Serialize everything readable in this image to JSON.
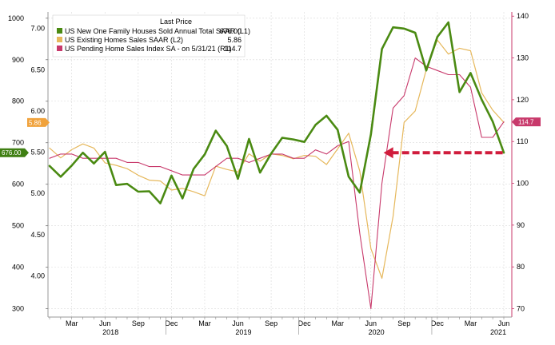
{
  "chart_data": {
    "type": "line",
    "legend": {
      "header": "Last Price",
      "entries": [
        {
          "label": "US New One Family Houses Sold Annual Total SAAR  (L1)",
          "value": "676.00",
          "color": "#4a8a12"
        },
        {
          "label": "US Existing Homes Sales SAAR  (L2)",
          "value": "5.86",
          "color": "#e6b85c"
        },
        {
          "label": "US Pending Home Sales Index SA -  on 5/31/21  (R1)",
          "value": "114.7",
          "color": "#c8396b"
        }
      ]
    },
    "x_axis": {
      "months": [
        "Mar",
        "Jun",
        "Sep",
        "Dec",
        "Mar",
        "Jun",
        "Sep",
        "Dec",
        "Mar",
        "Jun",
        "Sep",
        "Dec",
        "Mar",
        "Jun"
      ],
      "years": [
        "2018",
        "2019",
        "2020",
        "2021"
      ]
    },
    "axis_l1": {
      "ticks": [
        "300",
        "400",
        "500",
        "600",
        "700",
        "800",
        "900",
        "1000"
      ],
      "range": [
        280,
        1015
      ]
    },
    "axis_l2": {
      "ticks": [
        "4.00",
        "4.50",
        "5.00",
        "5.50",
        "6.00",
        "6.50",
        "7.00"
      ],
      "range": [
        3.5,
        7.2
      ]
    },
    "axis_r1": {
      "ticks": [
        "70",
        "80",
        "90",
        "100",
        "110",
        "120",
        "130",
        "140"
      ],
      "range": [
        68,
        141
      ]
    },
    "tags": {
      "l1": "676.00",
      "l2": "5.86",
      "r1": "114.7"
    },
    "series": [
      {
        "name": "US New One Family Houses Sold Annual Total SAAR",
        "axis": "l1",
        "color": "#4a8a12",
        "values": [
          644,
          618,
          645,
          676,
          650,
          678,
          598,
          601,
          582,
          583,
          554,
          621,
          566,
          637,
          672,
          729,
          692,
          613,
          709,
          628,
          674,
          712,
          708,
          702,
          743,
          765,
          731,
          618,
          580,
          720,
          926,
          978,
          975,
          965,
          874,
          955,
          990,
          822,
          868,
          804,
          751,
          676
        ]
      },
      {
        "name": "US Existing Homes Sales SAAR",
        "axis": "l2",
        "color": "#e6b85c",
        "values": [
          5.55,
          5.43,
          5.53,
          5.6,
          5.55,
          5.37,
          5.34,
          5.3,
          5.22,
          5.16,
          5.15,
          5.04,
          5.06,
          5.02,
          4.97,
          5.33,
          5.29,
          5.26,
          5.48,
          5.39,
          5.48,
          5.46,
          5.42,
          5.46,
          5.45,
          5.35,
          5.54,
          5.73,
          5.27,
          4.33,
          3.97,
          4.72,
          5.86,
          6.0,
          6.5,
          6.86,
          6.69,
          6.76,
          6.73,
          6.22,
          6.01,
          5.86
        ]
      },
      {
        "name": "US Pending Home Sales Index SA",
        "axis": "r1",
        "color": "#c8396b",
        "values": [
          106,
          107,
          107,
          106,
          106,
          106,
          106,
          105,
          105,
          104,
          104,
          103,
          102,
          102,
          102,
          104,
          106,
          106,
          105,
          106,
          107,
          107,
          106,
          106,
          108,
          107,
          109,
          110,
          88,
          70,
          100,
          118,
          121,
          130,
          128,
          127,
          126,
          126,
          123,
          111,
          111,
          114.7
        ]
      }
    ],
    "annotation": {
      "type": "dashed-arrow",
      "color": "#d01c3c",
      "level_l1": 676
    }
  }
}
